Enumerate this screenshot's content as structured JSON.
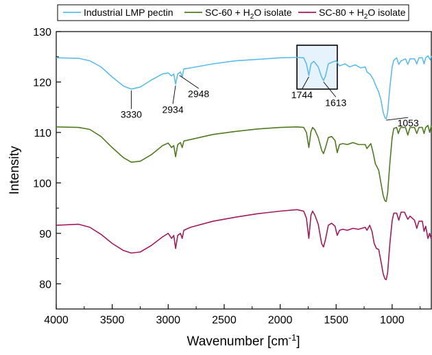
{
  "chart_data": {
    "type": "line",
    "xlabel": "Wavenumber [cm",
    "xlabel_superscript": "-1",
    "xlabel_suffix": "]",
    "ylabel": "Intensity",
    "xlim": [
      4000,
      650
    ],
    "ylim": [
      75,
      130
    ],
    "x_ticks": [
      4000,
      3500,
      3000,
      2500,
      2000,
      1500,
      1000
    ],
    "y_ticks": [
      80,
      90,
      100,
      110,
      120,
      130
    ],
    "grid": false,
    "legend_position": "top",
    "series": [
      {
        "name": "Industrial LMP pectin",
        "legend_parts": [
          "Industrial LMP pectin"
        ],
        "color": "#5BBCEB",
        "points": [
          [
            4000,
            124.8
          ],
          [
            3800,
            124.7
          ],
          [
            3700,
            124.2
          ],
          [
            3600,
            123.0
          ],
          [
            3500,
            121.0
          ],
          [
            3400,
            119.2
          ],
          [
            3330,
            118.6
          ],
          [
            3250,
            119.0
          ],
          [
            3150,
            120.4
          ],
          [
            3050,
            121.6
          ],
          [
            3000,
            121.8
          ],
          [
            2970,
            121.2
          ],
          [
            2950,
            121.6
          ],
          [
            2934,
            119.6
          ],
          [
            2915,
            121.6
          ],
          [
            2890,
            122.0
          ],
          [
            2875,
            121.0
          ],
          [
            2860,
            122.6
          ],
          [
            2800,
            122.8
          ],
          [
            2600,
            123.6
          ],
          [
            2400,
            124.2
          ],
          [
            2200,
            124.5
          ],
          [
            2000,
            124.8
          ],
          [
            1850,
            124.9
          ],
          [
            1790,
            124.8
          ],
          [
            1765,
            123.6
          ],
          [
            1744,
            121.3
          ],
          [
            1725,
            123.6
          ],
          [
            1700,
            124.1
          ],
          [
            1660,
            123.0
          ],
          [
            1630,
            121.0
          ],
          [
            1613,
            120.3
          ],
          [
            1595,
            121.2
          ],
          [
            1570,
            123.6
          ],
          [
            1530,
            124.0
          ],
          [
            1500,
            124.2
          ],
          [
            1470,
            123.2
          ],
          [
            1420,
            123.6
          ],
          [
            1380,
            123.0
          ],
          [
            1330,
            123.4
          ],
          [
            1280,
            122.8
          ],
          [
            1240,
            123.0
          ],
          [
            1225,
            122.0
          ],
          [
            1195,
            121.5
          ],
          [
            1170,
            120.6
          ],
          [
            1150,
            119.5
          ],
          [
            1120,
            118.0
          ],
          [
            1100,
            116.5
          ],
          [
            1080,
            114.0
          ],
          [
            1065,
            113.0
          ],
          [
            1053,
            112.7
          ],
          [
            1040,
            114.0
          ],
          [
            1020,
            119.0
          ],
          [
            1000,
            123.0
          ],
          [
            985,
            124.3
          ],
          [
            960,
            124.8
          ],
          [
            940,
            123.5
          ],
          [
            920,
            124.2
          ],
          [
            880,
            124.6
          ],
          [
            860,
            123.5
          ],
          [
            840,
            124.6
          ],
          [
            800,
            124.6
          ],
          [
            780,
            123.6
          ],
          [
            760,
            124.8
          ],
          [
            730,
            124.8
          ],
          [
            715,
            123.6
          ],
          [
            700,
            124.8
          ],
          [
            680,
            125.2
          ],
          [
            660,
            124.4
          ],
          [
            650,
            125.2
          ]
        ]
      },
      {
        "name": "SC-60 + H2O isolate",
        "legend_parts": [
          "SC-60 + H",
          "2",
          "O isolate"
        ],
        "color": "#4F7A1F",
        "points": [
          [
            4000,
            111.1
          ],
          [
            3800,
            111.0
          ],
          [
            3700,
            110.6
          ],
          [
            3600,
            109.2
          ],
          [
            3500,
            107.0
          ],
          [
            3400,
            105.0
          ],
          [
            3330,
            104.1
          ],
          [
            3250,
            104.3
          ],
          [
            3150,
            105.6
          ],
          [
            3050,
            107.4
          ],
          [
            3000,
            107.9
          ],
          [
            2970,
            107.0
          ],
          [
            2950,
            107.4
          ],
          [
            2934,
            105.2
          ],
          [
            2915,
            107.6
          ],
          [
            2890,
            108.0
          ],
          [
            2875,
            107.0
          ],
          [
            2860,
            108.3
          ],
          [
            2800,
            108.6
          ],
          [
            2600,
            109.6
          ],
          [
            2400,
            110.2
          ],
          [
            2200,
            110.7
          ],
          [
            2000,
            111.0
          ],
          [
            1850,
            111.1
          ],
          [
            1790,
            111.0
          ],
          [
            1765,
            110.0
          ],
          [
            1744,
            107.0
          ],
          [
            1725,
            110.2
          ],
          [
            1710,
            111.0
          ],
          [
            1690,
            110.5
          ],
          [
            1660,
            109.0
          ],
          [
            1630,
            106.5
          ],
          [
            1613,
            105.8
          ],
          [
            1595,
            107.0
          ],
          [
            1570,
            109.0
          ],
          [
            1540,
            109.2
          ],
          [
            1510,
            108.4
          ],
          [
            1490,
            106.0
          ],
          [
            1470,
            107.6
          ],
          [
            1440,
            107.8
          ],
          [
            1400,
            107.6
          ],
          [
            1350,
            108.0
          ],
          [
            1300,
            107.6
          ],
          [
            1240,
            107.6
          ],
          [
            1225,
            106.8
          ],
          [
            1190,
            107.8
          ],
          [
            1170,
            106.0
          ],
          [
            1150,
            103.8
          ],
          [
            1120,
            102.5
          ],
          [
            1100,
            100.0
          ],
          [
            1080,
            97.5
          ],
          [
            1065,
            96.5
          ],
          [
            1053,
            96.3
          ],
          [
            1040,
            98.0
          ],
          [
            1020,
            104.0
          ],
          [
            1000,
            109.0
          ],
          [
            985,
            110.8
          ],
          [
            960,
            111.0
          ],
          [
            945,
            109.8
          ],
          [
            925,
            111.0
          ],
          [
            880,
            111.0
          ],
          [
            860,
            109.5
          ],
          [
            840,
            111.0
          ],
          [
            800,
            111.0
          ],
          [
            780,
            109.8
          ],
          [
            760,
            111.0
          ],
          [
            730,
            111.0
          ],
          [
            715,
            109.8
          ],
          [
            700,
            111.0
          ],
          [
            680,
            111.4
          ],
          [
            665,
            110.0
          ],
          [
            650,
            111.4
          ]
        ]
      },
      {
        "name": "SC-80 + H2O isolate",
        "legend_parts": [
          "SC-80 + H",
          "2",
          "O isolate"
        ],
        "color": "#A2195E",
        "points": [
          [
            4000,
            91.6
          ],
          [
            3800,
            91.8
          ],
          [
            3700,
            91.2
          ],
          [
            3600,
            89.8
          ],
          [
            3500,
            88.0
          ],
          [
            3400,
            86.6
          ],
          [
            3330,
            86.1
          ],
          [
            3250,
            86.3
          ],
          [
            3150,
            87.6
          ],
          [
            3050,
            89.3
          ],
          [
            3000,
            90.0
          ],
          [
            2970,
            89.0
          ],
          [
            2950,
            89.6
          ],
          [
            2934,
            87.0
          ],
          [
            2915,
            89.6
          ],
          [
            2890,
            90.0
          ],
          [
            2875,
            89.0
          ],
          [
            2860,
            90.6
          ],
          [
            2800,
            91.2
          ],
          [
            2600,
            92.4
          ],
          [
            2400,
            93.2
          ],
          [
            2200,
            93.9
          ],
          [
            2000,
            94.4
          ],
          [
            1850,
            94.7
          ],
          [
            1790,
            94.4
          ],
          [
            1765,
            93.0
          ],
          [
            1744,
            89.0
          ],
          [
            1725,
            93.6
          ],
          [
            1710,
            94.4
          ],
          [
            1690,
            93.6
          ],
          [
            1660,
            91.8
          ],
          [
            1630,
            88.0
          ],
          [
            1613,
            87.3
          ],
          [
            1595,
            88.8
          ],
          [
            1570,
            91.6
          ],
          [
            1540,
            92.0
          ],
          [
            1510,
            91.4
          ],
          [
            1490,
            89.6
          ],
          [
            1470,
            90.6
          ],
          [
            1440,
            90.8
          ],
          [
            1400,
            90.6
          ],
          [
            1350,
            91.0
          ],
          [
            1300,
            90.8
          ],
          [
            1240,
            91.2
          ],
          [
            1225,
            90.6
          ],
          [
            1200,
            91.6
          ],
          [
            1180,
            90.4
          ],
          [
            1160,
            88.0
          ],
          [
            1140,
            87.0
          ],
          [
            1120,
            86.8
          ],
          [
            1100,
            84.5
          ],
          [
            1080,
            82.0
          ],
          [
            1065,
            81.0
          ],
          [
            1053,
            80.8
          ],
          [
            1040,
            82.2
          ],
          [
            1020,
            88.0
          ],
          [
            1000,
            92.5
          ],
          [
            985,
            94.0
          ],
          [
            960,
            94.0
          ],
          [
            940,
            92.6
          ],
          [
            920,
            94.2
          ],
          [
            890,
            94.2
          ],
          [
            860,
            92.8
          ],
          [
            840,
            93.4
          ],
          [
            800,
            92.6
          ],
          [
            780,
            91.0
          ],
          [
            760,
            92.4
          ],
          [
            730,
            92.4
          ],
          [
            715,
            90.4
          ],
          [
            700,
            91.4
          ],
          [
            680,
            89.0
          ],
          [
            665,
            90.0
          ],
          [
            650,
            88.8
          ]
        ]
      }
    ],
    "annotations": [
      {
        "label": "3330",
        "x": 3330,
        "y": 118.6
      },
      {
        "label": "2934",
        "x": 2934,
        "y": 119.6
      },
      {
        "label": "2948",
        "x": 2900,
        "y": 121.6
      },
      {
        "label": "1744",
        "x": 1744,
        "y": 121.3
      },
      {
        "label": "1613",
        "x": 1613,
        "y": 120.3
      },
      {
        "label": "1053",
        "x": 1053,
        "y": 112.7
      }
    ],
    "highlight_box": {
      "x_range": [
        1850,
        1490
      ],
      "y_range": [
        118.6,
        127.3
      ]
    }
  }
}
